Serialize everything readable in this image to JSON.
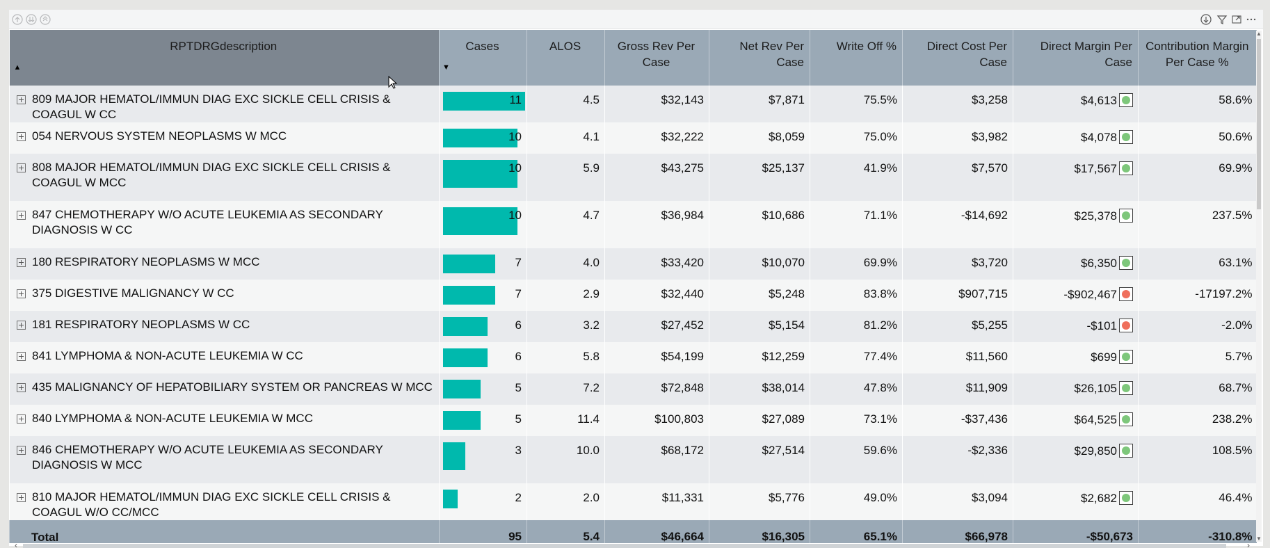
{
  "header_icons": {
    "left": [
      "drill-up-icon",
      "drill-down-icon",
      "expand-all-icon"
    ],
    "right": [
      "drill-mode-icon",
      "filter-icon",
      "focus-mode-icon",
      "more-options-icon"
    ]
  },
  "table": {
    "columns": [
      {
        "label": "RPTDRGdescription"
      },
      {
        "label": "Cases"
      },
      {
        "label": "ALOS"
      },
      {
        "label": "Gross Rev Per Case"
      },
      {
        "label": "Net Rev Per Case"
      },
      {
        "label": "Write Off %"
      },
      {
        "label": "Direct Cost Per Case"
      },
      {
        "label": "Direct Margin Per Case"
      },
      {
        "label": "Contribution Margin Per Case %"
      }
    ],
    "bar_color": "#00b9ad",
    "kpi_colors": {
      "green": "#7ec77b",
      "red": "#ef6f5c"
    },
    "max_cases": 11,
    "rows": [
      {
        "desc": "809 MAJOR HEMATOL/IMMUN DIAG EXC SICKLE CELL CRISIS & COAGUL W CC",
        "cases": "11",
        "cases_value": 11,
        "alos": "4.5",
        "gross": "$32,143",
        "net": "$7,871",
        "writeoff": "75.5%",
        "dcost": "$3,258",
        "dmargin": "$4,613",
        "kpi": "green",
        "contrib": "58.6%"
      },
      {
        "desc": "054 NERVOUS SYSTEM NEOPLASMS W MCC",
        "cases": "10",
        "cases_value": 10,
        "alos": "4.1",
        "gross": "$32,222",
        "net": "$8,059",
        "writeoff": "75.0%",
        "dcost": "$3,982",
        "dmargin": "$4,078",
        "kpi": "green",
        "contrib": "50.6%"
      },
      {
        "desc": "808 MAJOR HEMATOL/IMMUN DIAG EXC SICKLE CELL CRISIS & COAGUL W MCC",
        "cases": "10",
        "cases_value": 10,
        "alos": "5.9",
        "gross": "$43,275",
        "net": "$25,137",
        "writeoff": "41.9%",
        "dcost": "$7,570",
        "dmargin": "$17,567",
        "kpi": "green",
        "contrib": "69.9%"
      },
      {
        "desc": "847 CHEMOTHERAPY W/O ACUTE LEUKEMIA AS SECONDARY DIAGNOSIS W CC",
        "cases": "10",
        "cases_value": 10,
        "alos": "4.7",
        "gross": "$36,984",
        "net": "$10,686",
        "writeoff": "71.1%",
        "dcost": "-$14,692",
        "dmargin": "$25,378",
        "kpi": "green",
        "contrib": "237.5%"
      },
      {
        "desc": "180 RESPIRATORY NEOPLASMS W MCC",
        "cases": "7",
        "cases_value": 7,
        "alos": "4.0",
        "gross": "$33,420",
        "net": "$10,070",
        "writeoff": "69.9%",
        "dcost": "$3,720",
        "dmargin": "$6,350",
        "kpi": "green",
        "contrib": "63.1%"
      },
      {
        "desc": "375 DIGESTIVE MALIGNANCY W CC",
        "cases": "7",
        "cases_value": 7,
        "alos": "2.9",
        "gross": "$32,440",
        "net": "$5,248",
        "writeoff": "83.8%",
        "dcost": "$907,715",
        "dmargin": "-$902,467",
        "kpi": "red",
        "contrib": "-17197.2%"
      },
      {
        "desc": "181 RESPIRATORY NEOPLASMS W CC",
        "cases": "6",
        "cases_value": 6,
        "alos": "3.2",
        "gross": "$27,452",
        "net": "$5,154",
        "writeoff": "81.2%",
        "dcost": "$5,255",
        "dmargin": "-$101",
        "kpi": "red",
        "contrib": "-2.0%"
      },
      {
        "desc": "841 LYMPHOMA & NON-ACUTE LEUKEMIA W CC",
        "cases": "6",
        "cases_value": 6,
        "alos": "5.8",
        "gross": "$54,199",
        "net": "$12,259",
        "writeoff": "77.4%",
        "dcost": "$11,560",
        "dmargin": "$699",
        "kpi": "green",
        "contrib": "5.7%"
      },
      {
        "desc": "435 MALIGNANCY OF HEPATOBILIARY SYSTEM OR PANCREAS W MCC",
        "cases": "5",
        "cases_value": 5,
        "alos": "7.2",
        "gross": "$72,848",
        "net": "$38,014",
        "writeoff": "47.8%",
        "dcost": "$11,909",
        "dmargin": "$26,105",
        "kpi": "green",
        "contrib": "68.7%"
      },
      {
        "desc": "840 LYMPHOMA & NON-ACUTE LEUKEMIA W MCC",
        "cases": "5",
        "cases_value": 5,
        "alos": "11.4",
        "gross": "$100,803",
        "net": "$27,089",
        "writeoff": "73.1%",
        "dcost": "-$37,436",
        "dmargin": "$64,525",
        "kpi": "green",
        "contrib": "238.2%"
      },
      {
        "desc": "846 CHEMOTHERAPY W/O ACUTE LEUKEMIA AS SECONDARY DIAGNOSIS W MCC",
        "cases": "3",
        "cases_value": 3,
        "alos": "10.0",
        "gross": "$68,172",
        "net": "$27,514",
        "writeoff": "59.6%",
        "dcost": "-$2,336",
        "dmargin": "$29,850",
        "kpi": "green",
        "contrib": "108.5%"
      },
      {
        "desc": "810 MAJOR HEMATOL/IMMUN DIAG EXC SICKLE CELL CRISIS & COAGUL W/O CC/MCC",
        "cases": "2",
        "cases_value": 2,
        "alos": "2.0",
        "gross": "$11,331",
        "net": "$5,776",
        "writeoff": "49.0%",
        "dcost": "$3,094",
        "dmargin": "$2,682",
        "kpi": "green",
        "contrib": "46.4%"
      }
    ],
    "total": {
      "desc": "Total",
      "cases": "95",
      "alos": "5.4",
      "gross": "$46,664",
      "net": "$16,305",
      "writeoff": "65.1%",
      "dcost": "$66,978",
      "dmargin": "-$50,673",
      "contrib": "-310.8%"
    }
  }
}
